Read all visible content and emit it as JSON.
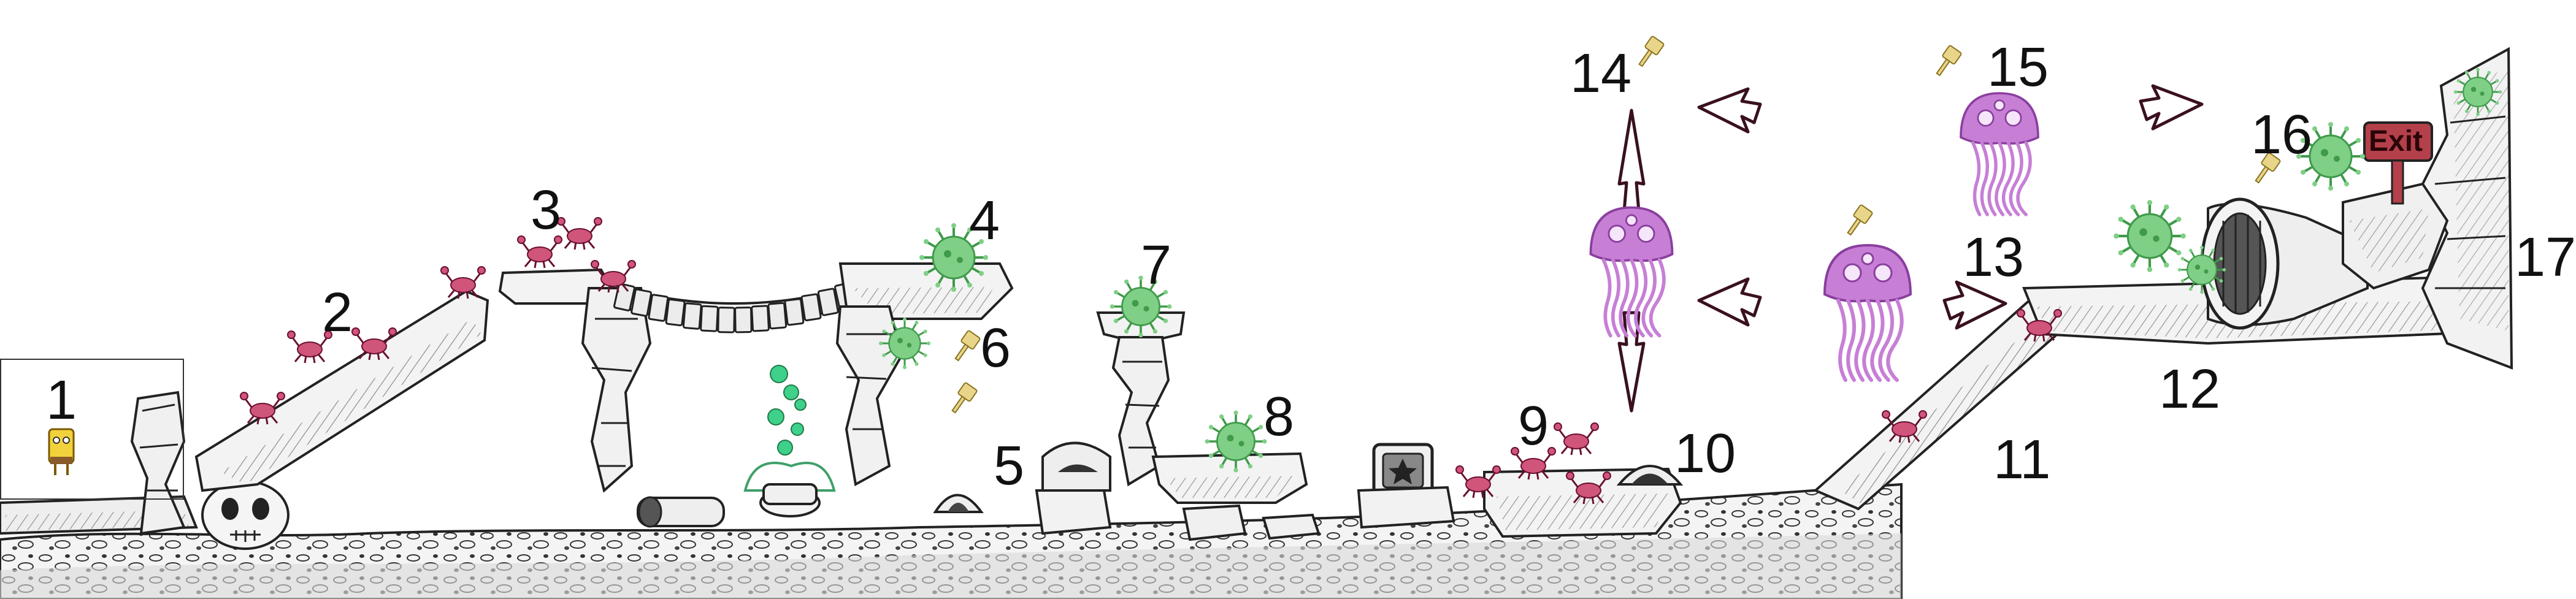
{
  "markers": {
    "m1": "1",
    "m2": "2",
    "m3": "3",
    "m4": "4",
    "m5": "5",
    "m6": "6",
    "m7": "7",
    "m8": "8",
    "m9": "9",
    "m10": "10",
    "m11": "11",
    "m12": "12",
    "m13": "13",
    "m14": "14",
    "m15": "15",
    "m16": "16",
    "m17": "17"
  },
  "exit_sign": "Exit",
  "colors": {
    "ink": "#1a1a1a",
    "rock_fill": "#f2f2f2",
    "jellyfish": "#c77fd6",
    "jellyfish_dark": "#8a3f9e",
    "urchin": "#7fcf86",
    "urchin_dark": "#3f9a4a",
    "crab": "#d0557a",
    "sign": "#b3404a",
    "spatula": "#e9d58a",
    "bubbles": "#3fd08a",
    "player": "#f2d23c"
  },
  "icons": {
    "player": "sponge-character-icon",
    "crab": "crab-enemy-icon",
    "urchin": "sea-urchin-enemy-icon",
    "jellyfish": "jellyfish-enemy-icon",
    "spatula": "golden-spatula-collectible-icon",
    "arrow": "patrol-arrow-icon"
  }
}
